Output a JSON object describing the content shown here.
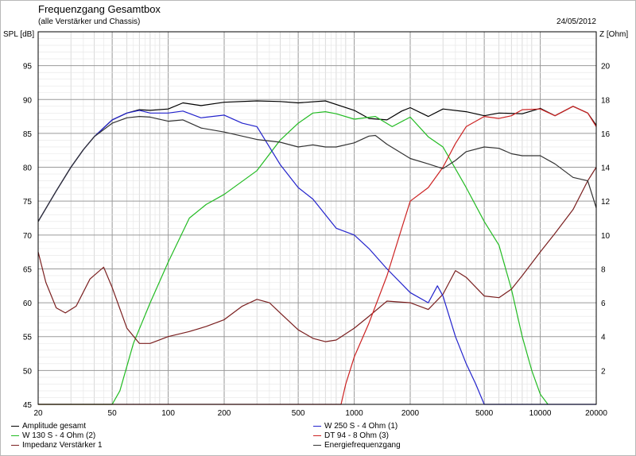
{
  "header": {
    "title": "Frequenzgang Gesamtbox",
    "subtitle": "(alle Verstärker und Chassis)",
    "date": "24/05/2012",
    "left_axis_label": "SPL [dB]",
    "right_axis_label": "Z [Ohm]"
  },
  "chart_data": {
    "type": "line",
    "x_scale": "log",
    "xlim": [
      20,
      20000
    ],
    "ylim": [
      45,
      100
    ],
    "y2lim": [
      0,
      22
    ],
    "grid": true,
    "x_ticks": [
      20,
      50,
      100,
      200,
      500,
      1000,
      2000,
      5000,
      10000,
      20000
    ],
    "x_tick_labels": [
      "20",
      "50",
      "100",
      "200",
      "500",
      "1000",
      "2000",
      "5000",
      "10000",
      "20000"
    ],
    "y_ticks": [
      45,
      50,
      55,
      60,
      65,
      70,
      75,
      80,
      85,
      90,
      95
    ],
    "y2_ticks": [
      2,
      4,
      6,
      8,
      10,
      12,
      14,
      16,
      18,
      20
    ],
    "legend_position": "bottom",
    "series": [
      {
        "name": "Amplitude gesamt",
        "color": "#000000",
        "axis": "left",
        "x": [
          20,
          25,
          30,
          35,
          40,
          50,
          60,
          70,
          80,
          100,
          120,
          150,
          200,
          300,
          400,
          500,
          700,
          1000,
          1200,
          1500,
          1800,
          2000,
          2500,
          3000,
          4000,
          5000,
          6000,
          8000,
          10000,
          12000,
          15000,
          18000,
          20000
        ],
        "y": [
          72,
          76.5,
          80,
          82.6,
          84.5,
          87,
          88,
          88.5,
          88.4,
          88.6,
          89.5,
          89.1,
          89.6,
          89.8,
          89.7,
          89.5,
          89.8,
          88.4,
          87.2,
          87,
          88.3,
          88.8,
          87.5,
          88.6,
          88.2,
          87.6,
          88,
          87.9,
          88.7,
          87.6,
          89,
          88,
          86.2
        ]
      },
      {
        "name": "W 130 S - 4 Ohm (2)",
        "color": "#22bb22",
        "axis": "left",
        "x": [
          20,
          50,
          55,
          65,
          80,
          100,
          130,
          160,
          200,
          300,
          400,
          500,
          600,
          700,
          800,
          1000,
          1300,
          1600,
          2000,
          2500,
          3000,
          4000,
          5000,
          6000,
          7000,
          8000,
          9000,
          10000,
          11000
        ],
        "y": [
          45,
          45,
          47,
          54,
          60,
          66,
          72.5,
          74.5,
          76,
          79.5,
          84,
          86.5,
          88,
          88.2,
          87.9,
          87.1,
          87.5,
          86,
          87.4,
          84.5,
          83,
          77,
          72,
          68.5,
          62,
          55,
          50,
          46.5,
          45
        ]
      },
      {
        "name": "Impedanz Verstärker 1",
        "color": "#7a1f1f",
        "axis": "right",
        "x": [
          20,
          22,
          25,
          28,
          32,
          38,
          45,
          50,
          60,
          70,
          80,
          100,
          130,
          160,
          200,
          250,
          300,
          350,
          400,
          500,
          600,
          700,
          800,
          1000,
          1200,
          1500,
          2000,
          2500,
          3000,
          3500,
          4000,
          5000,
          6000,
          7000,
          8000,
          10000,
          12000,
          15000,
          18000,
          20000
        ],
        "y": [
          9,
          7.2,
          5.7,
          5.4,
          5.8,
          7.4,
          8.1,
          6.9,
          4.5,
          3.6,
          3.6,
          4,
          4.3,
          4.6,
          5,
          5.8,
          6.2,
          6,
          5.4,
          4.4,
          3.9,
          3.7,
          3.8,
          4.5,
          5.2,
          6.1,
          6,
          5.6,
          6.5,
          7.9,
          7.5,
          6.4,
          6.3,
          6.8,
          7.6,
          9,
          10.1,
          11.5,
          13.2,
          14
        ]
      },
      {
        "name": "W 250 S - 4 Ohm (1)",
        "color": "#2222cc",
        "axis": "left",
        "x": [
          20,
          25,
          30,
          35,
          40,
          50,
          60,
          70,
          80,
          100,
          120,
          150,
          200,
          250,
          300,
          400,
          500,
          600,
          700,
          800,
          1000,
          1200,
          1500,
          2000,
          2500,
          2800,
          3000,
          3500,
          4000,
          4500,
          5000,
          6000,
          10000,
          20000
        ],
        "y": [
          72,
          76.5,
          80,
          82.6,
          84.5,
          87,
          88,
          88.4,
          88,
          88,
          88.3,
          87.3,
          87.7,
          86.5,
          86,
          80.4,
          77,
          75.3,
          73,
          71,
          70,
          68,
          65,
          61.5,
          60,
          62.5,
          61,
          55,
          51,
          48,
          45,
          45,
          45,
          45
        ]
      },
      {
        "name": "DT 94 - 8 Ohm (3)",
        "color": "#cc2222",
        "axis": "left",
        "x": [
          20,
          850,
          900,
          1000,
          1200,
          1500,
          1800,
          2000,
          2500,
          3000,
          3500,
          4000,
          5000,
          6000,
          7000,
          8000,
          10000,
          12000,
          15000,
          18000,
          20000
        ],
        "y": [
          45,
          45,
          48,
          52,
          57,
          64,
          71,
          75,
          77,
          80,
          83.5,
          86,
          87.5,
          87.2,
          87.6,
          88.5,
          88.6,
          87.6,
          89,
          88,
          86
        ]
      },
      {
        "name": "Energiefrequenzgang",
        "color": "#333333",
        "axis": "left",
        "x": [
          20,
          25,
          30,
          35,
          40,
          50,
          60,
          70,
          80,
          100,
          120,
          150,
          200,
          300,
          400,
          500,
          600,
          700,
          800,
          1000,
          1200,
          1300,
          1500,
          2000,
          2500,
          3000,
          3500,
          4000,
          5000,
          6000,
          7000,
          8000,
          10000,
          12000,
          15000,
          18000,
          20000
        ],
        "y": [
          72,
          76.5,
          80,
          82.6,
          84.5,
          86.5,
          87.3,
          87.5,
          87.4,
          86.8,
          87,
          85.8,
          85.2,
          84.1,
          83.7,
          83,
          83.3,
          83,
          83,
          83.6,
          84.6,
          84.7,
          83.4,
          81.3,
          80.5,
          79.8,
          81,
          82.3,
          83,
          82.8,
          82,
          81.7,
          81.7,
          80.5,
          78.5,
          78,
          74
        ]
      }
    ]
  }
}
